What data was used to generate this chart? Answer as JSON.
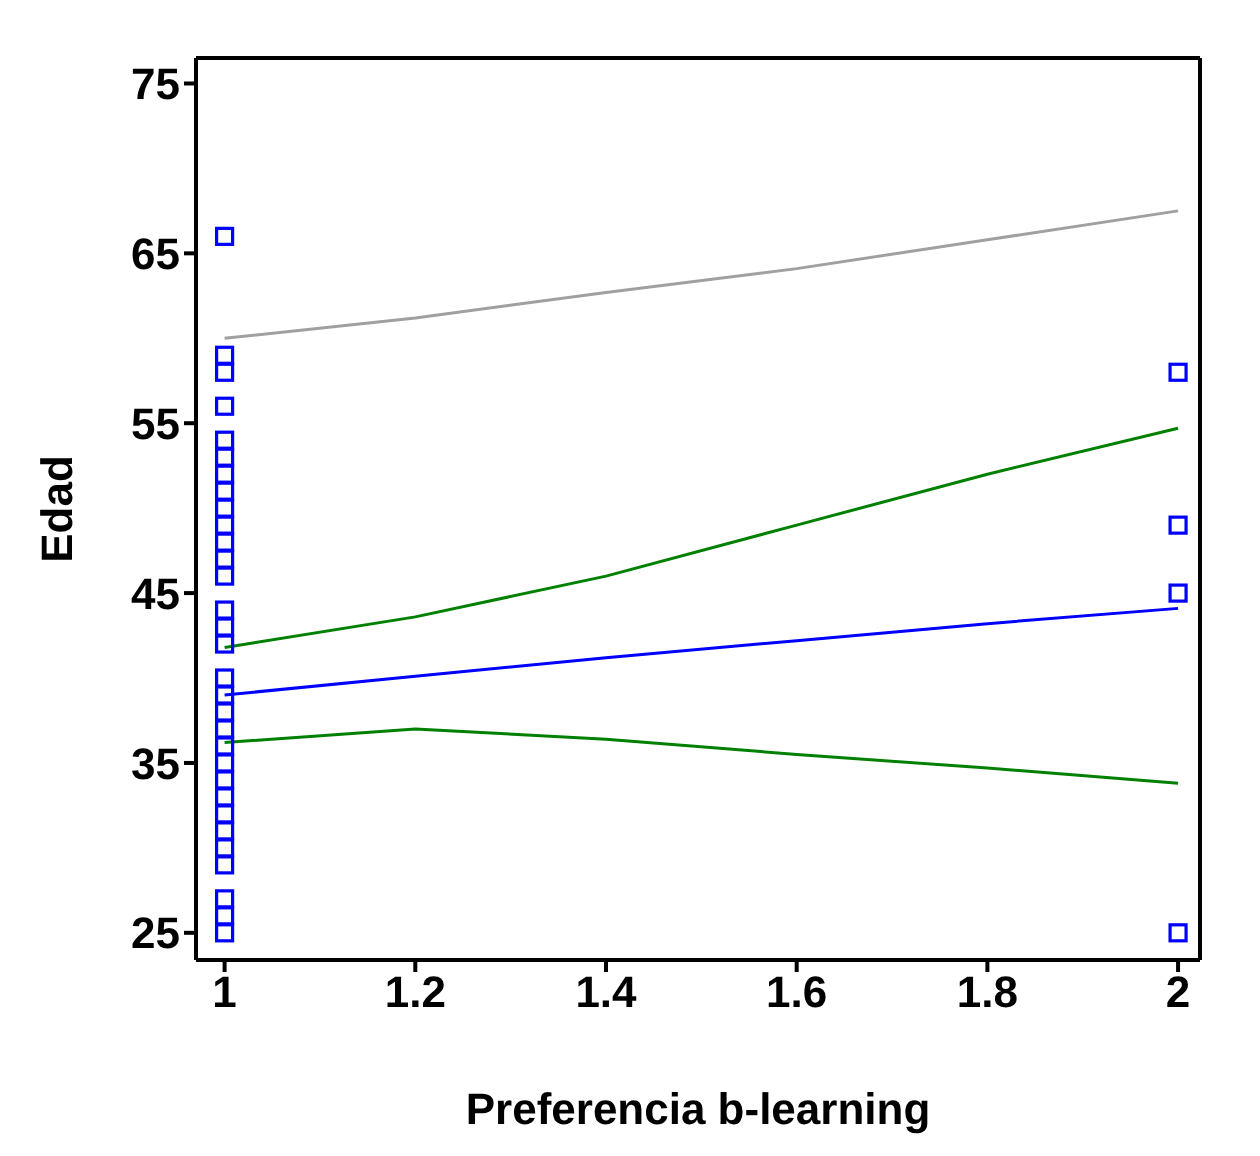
{
  "chart_data": {
    "type": "scatter",
    "xlabel": "Preferencia b-learning",
    "ylabel": "Edad",
    "xlim": [
      0.97,
      2.023
    ],
    "ylim": [
      23.4,
      76.5
    ],
    "xticks": [
      1,
      1.2,
      1.4,
      1.6,
      1.8,
      2
    ],
    "yticks": [
      25,
      35,
      45,
      55,
      65,
      75
    ],
    "grid": false,
    "legend": false,
    "series": [
      {
        "type": "scatter",
        "marker": "square",
        "color": "#0000ff",
        "x": [
          1,
          1,
          1,
          1,
          1,
          1,
          1,
          1,
          1,
          1,
          1,
          1,
          1,
          1,
          1,
          1,
          1,
          1,
          1,
          1,
          1,
          1,
          1,
          1,
          1,
          1,
          1,
          1,
          1,
          1,
          1,
          2,
          2,
          2,
          2
        ],
        "values": [
          66,
          59,
          58,
          56,
          54,
          53,
          52,
          51,
          50,
          49,
          48,
          47,
          46,
          44,
          43,
          42,
          40,
          39,
          38,
          37,
          36,
          35,
          34,
          33,
          32,
          31,
          30,
          29,
          27,
          26,
          25,
          58,
          49,
          45,
          25
        ]
      },
      {
        "type": "line",
        "color": "#0000ff",
        "x": [
          1,
          1.2,
          1.4,
          1.6,
          1.8,
          2
        ],
        "values": [
          39.0,
          40.1,
          41.2,
          42.2,
          43.2,
          44.1
        ]
      },
      {
        "type": "line",
        "color": "#008000",
        "x": [
          1,
          1.2,
          1.4,
          1.6,
          1.8,
          2
        ],
        "values": [
          41.8,
          43.6,
          46.0,
          49.0,
          52.0,
          54.7
        ]
      },
      {
        "type": "line",
        "color": "#008000",
        "x": [
          1,
          1.2,
          1.4,
          1.6,
          1.8,
          2
        ],
        "values": [
          36.2,
          37.0,
          36.4,
          35.5,
          34.7,
          33.8
        ]
      },
      {
        "type": "line",
        "color": "#a0a0a0",
        "x": [
          1,
          1.2,
          1.4,
          1.6,
          1.8,
          2
        ],
        "values": [
          60.0,
          61.2,
          62.7,
          64.1,
          65.8,
          67.5
        ]
      }
    ]
  }
}
